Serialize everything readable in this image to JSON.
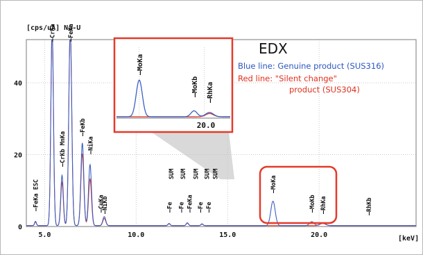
{
  "chart_data": {
    "type": "line",
    "title": "EDX",
    "ylabel": "[cps/uA] Na-U",
    "xlabel": "[keV]",
    "xlim": [
      4.0,
      25.3
    ],
    "ylim": [
      0,
      52
    ],
    "x_ticks": [
      5.0,
      10.0,
      15.0,
      20.0
    ],
    "x_tick_labels": [
      "5.0",
      "10.0",
      "15.0",
      "20.0"
    ],
    "y_ticks": [
      0,
      20,
      40
    ],
    "y_tick_labels": [
      "0",
      "20",
      "40"
    ],
    "grid": true,
    "series": [
      {
        "name": "Genuine product (SUS316)",
        "color": "#3a5fc4",
        "peaks": [
          {
            "x": 4.5,
            "y": 1.2,
            "w": 0.05
          },
          {
            "x": 5.41,
            "y": 55,
            "w": 0.07
          },
          {
            "x": 5.95,
            "y": 14,
            "w": 0.07
          },
          {
            "x": 6.4,
            "y": 55,
            "w": 0.08
          },
          {
            "x": 7.06,
            "y": 23,
            "w": 0.08
          },
          {
            "x": 7.48,
            "y": 17,
            "w": 0.08
          },
          {
            "x": 8.26,
            "y": 2.5,
            "w": 0.08
          },
          {
            "x": 11.8,
            "y": 0.6,
            "w": 0.06
          },
          {
            "x": 12.8,
            "y": 0.8,
            "w": 0.06
          },
          {
            "x": 13.6,
            "y": 0.5,
            "w": 0.06
          },
          {
            "x": 17.48,
            "y": 6.8,
            "w": 0.12
          },
          {
            "x": 19.6,
            "y": 1.1,
            "w": 0.12
          },
          {
            "x": 20.2,
            "y": 0.8,
            "w": 0.15
          }
        ]
      },
      {
        "name": "\"Silent change\" product (SUS304)",
        "color": "#e53a2a",
        "peaks": [
          {
            "x": 4.5,
            "y": 1.0,
            "w": 0.05
          },
          {
            "x": 5.41,
            "y": 55,
            "w": 0.07
          },
          {
            "x": 5.95,
            "y": 12,
            "w": 0.07
          },
          {
            "x": 6.4,
            "y": 55,
            "w": 0.08
          },
          {
            "x": 7.06,
            "y": 20,
            "w": 0.08
          },
          {
            "x": 7.48,
            "y": 13,
            "w": 0.08
          },
          {
            "x": 8.26,
            "y": 2.0,
            "w": 0.08
          },
          {
            "x": 11.8,
            "y": 0.5,
            "w": 0.06
          },
          {
            "x": 12.8,
            "y": 0.7,
            "w": 0.06
          },
          {
            "x": 13.6,
            "y": 0.4,
            "w": 0.06
          },
          {
            "x": 20.2,
            "y": 0.6,
            "w": 0.15
          }
        ]
      }
    ],
    "peak_labels": [
      {
        "text": "FeKa ESC",
        "x": 4.5
      },
      {
        "text": "CrKa",
        "x": 5.41
      },
      {
        "text": "CrKb MnKa",
        "x": 5.95
      },
      {
        "text": "FeKa",
        "x": 6.4
      },
      {
        "text": "FeKb",
        "x": 7.06
      },
      {
        "text": "NiKa",
        "x": 7.48
      },
      {
        "text": "CuKa",
        "x": 8.05
      },
      {
        "text": "NiKb",
        "x": 8.26
      },
      {
        "text": "Fe",
        "x": 11.8
      },
      {
        "text": "SUM",
        "x": 11.9
      },
      {
        "text": "Fe",
        "x": 12.45
      },
      {
        "text": "SUM",
        "x": 12.55
      },
      {
        "text": "FeKa",
        "x": 12.9
      },
      {
        "text": "SUM",
        "x": 13.25
      },
      {
        "text": "Fe",
        "x": 13.5
      },
      {
        "text": "SUM",
        "x": 13.85
      },
      {
        "text": "Fe",
        "x": 13.95
      },
      {
        "text": "SUM",
        "x": 14.3
      },
      {
        "text": "MoKa",
        "x": 17.48
      },
      {
        "text": "MoKb",
        "x": 19.6
      },
      {
        "text": "RhKa",
        "x": 20.2
      },
      {
        "text": "RhKb",
        "x": 22.7
      }
    ]
  },
  "inset": {
    "peak_labels": [
      {
        "text": "MoKa"
      },
      {
        "text": "MoKb"
      },
      {
        "text": "RhKa"
      }
    ],
    "tick_label": "20.0"
  },
  "legend": {
    "heading": "EDX",
    "blue_line": "Blue line: Genuine product (SUS316)",
    "red_line_1": "Red line: \"Silent change\"",
    "red_line_2": "product (SUS304)",
    "blue_color": "#2b56c0",
    "red_color": "#e0301e",
    "highlight_color": "#e53a2a"
  }
}
